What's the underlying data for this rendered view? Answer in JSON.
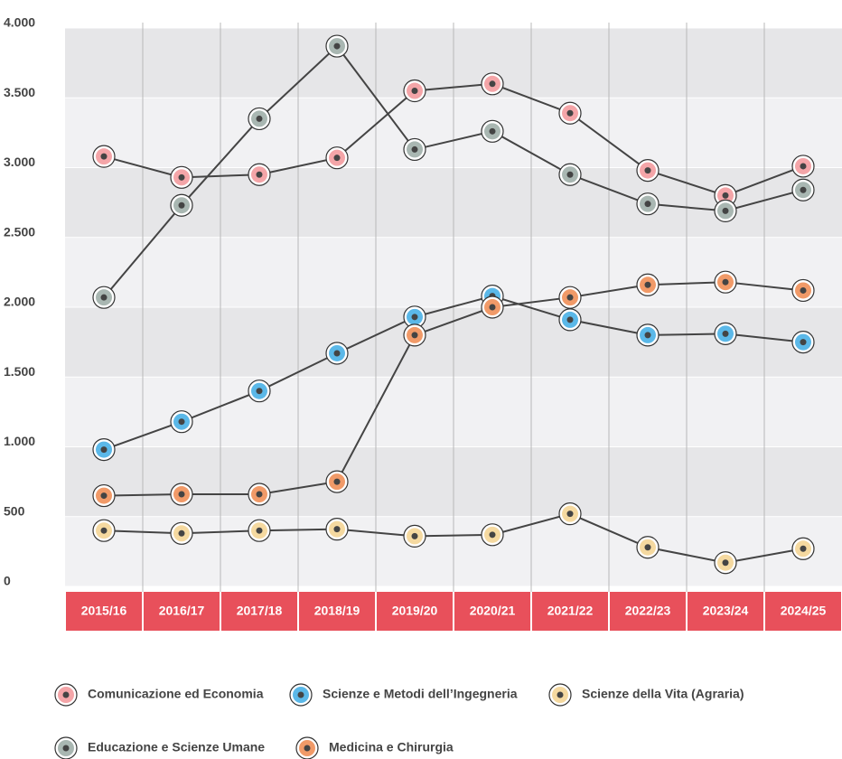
{
  "chart_data": {
    "type": "line",
    "categories": [
      "2015/16",
      "2016/17",
      "2017/18",
      "2018/19",
      "2019/20",
      "2020/21",
      "2021/22",
      "2022/23",
      "2023/24",
      "2024/25"
    ],
    "series": [
      {
        "name": "Comunicazione ed Economia",
        "color": "#f4a5a8",
        "values": [
          3080,
          2930,
          2950,
          3070,
          3550,
          3600,
          3390,
          2980,
          2800,
          3010
        ]
      },
      {
        "name": "Scienze e Metodi dell’Ingegneria",
        "color": "#5bb8e8",
        "values": [
          980,
          1180,
          1400,
          1670,
          1930,
          2080,
          1910,
          1800,
          1810,
          1750
        ]
      },
      {
        "name": "Scienze della Vita (Agraria)",
        "color": "#f5d9a0",
        "values": [
          400,
          380,
          400,
          410,
          360,
          370,
          520,
          280,
          170,
          270
        ]
      },
      {
        "name": "Educazione e Scienze Umane",
        "color": "#a9b7b2",
        "values": [
          2070,
          2730,
          3350,
          3870,
          3130,
          3260,
          2950,
          2740,
          2690,
          2840
        ]
      },
      {
        "name": "Medicina e Chirurgia",
        "color": "#f19a68",
        "values": [
          650,
          660,
          660,
          750,
          1800,
          2000,
          2070,
          2160,
          2180,
          2120
        ]
      }
    ],
    "ylim": [
      0,
      4000
    ],
    "yticks": [
      0,
      500,
      {
        "value": 1000,
        "label": "1.000"
      },
      {
        "value": 1500,
        "label": "1.500"
      },
      {
        "value": 2000,
        "label": "2.000"
      },
      {
        "value": 2500,
        "label": "2.500"
      },
      {
        "value": 3000,
        "label": "3.000"
      },
      {
        "value": 3500,
        "label": "3.500"
      },
      {
        "value": 4000,
        "label": "4.000"
      }
    ],
    "grid": true
  }
}
